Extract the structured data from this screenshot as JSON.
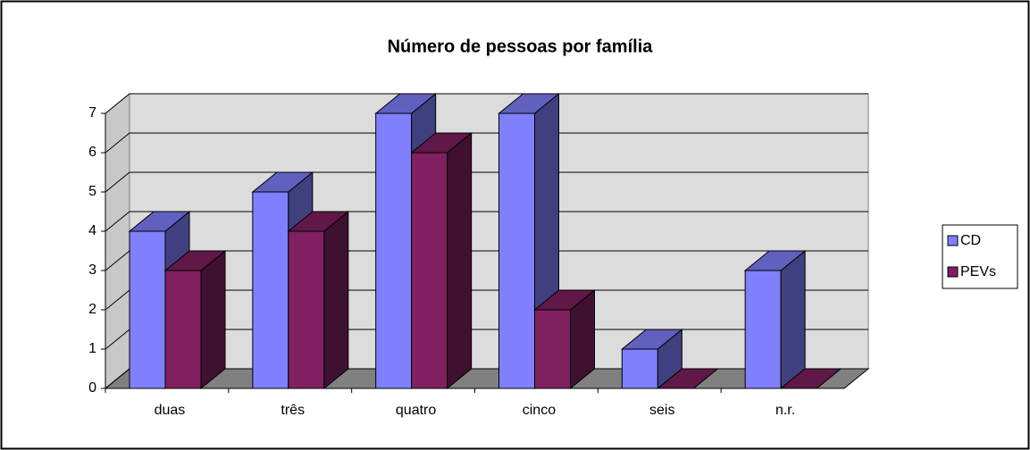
{
  "chart_data": {
    "type": "bar3d",
    "title": "Número de pessoas por família",
    "categories": [
      "duas",
      "três",
      "quatro",
      "cinco",
      "seis",
      "n.r."
    ],
    "series": [
      {
        "name": "CD",
        "color": "#8080ff",
        "values": [
          4,
          5,
          7,
          7,
          1,
          3
        ]
      },
      {
        "name": "PEVs",
        "color": "#802060",
        "values": [
          3,
          4,
          6,
          2,
          0,
          0
        ]
      }
    ],
    "ylim": [
      0,
      7
    ],
    "yticks": [
      0,
      1,
      2,
      3,
      4,
      5,
      6,
      7
    ],
    "grid": true,
    "legend": "right"
  }
}
